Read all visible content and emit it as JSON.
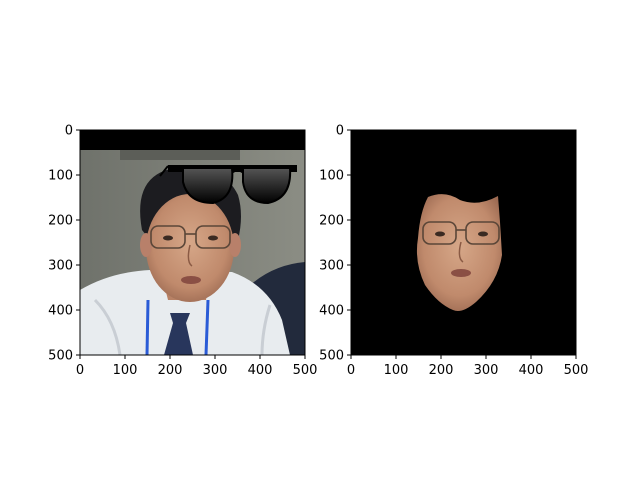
{
  "chart_data": [
    {
      "type": "image",
      "title": "",
      "xlabel": "",
      "ylabel": "",
      "xlim": [
        0,
        500
      ],
      "ylim": [
        500,
        0
      ],
      "xticks": [
        "0",
        "100",
        "200",
        "300",
        "400",
        "500"
      ],
      "yticks": [
        "0",
        "100",
        "200",
        "300",
        "400",
        "500"
      ],
      "content": "photo of man in glasses and tie with sunglasses overlay above head"
    },
    {
      "type": "image",
      "title": "",
      "xlabel": "",
      "ylabel": "",
      "xlim": [
        0,
        500
      ],
      "ylim": [
        500,
        0
      ],
      "xticks": [
        "0",
        "100",
        "200",
        "300",
        "400",
        "500"
      ],
      "yticks": [
        "0",
        "100",
        "200",
        "300",
        "400",
        "500"
      ],
      "content": "face segmentation mask on black background"
    }
  ],
  "colors": {
    "background": "#ffffff",
    "axes": "#000000",
    "mask_bg": "#000000",
    "wall": "#7e8076",
    "shirt": "#e8ecef",
    "skin": "#c69478",
    "hair": "#1c1c20",
    "tie": "#28365c",
    "jacket": "#222a3c"
  }
}
